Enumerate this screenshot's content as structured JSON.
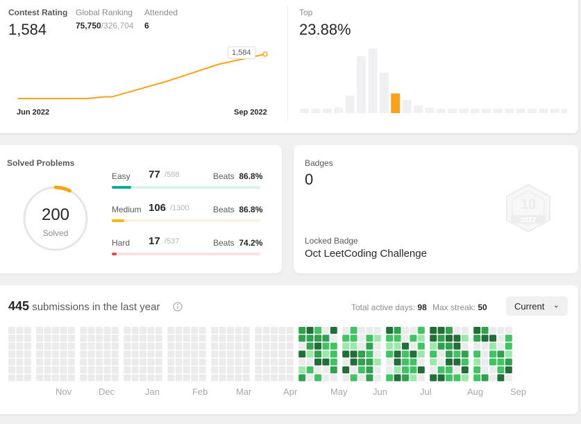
{
  "contest": {
    "rating_label": "Contest Rating",
    "rating_value": "1,584",
    "ranking_label": "Global Ranking",
    "ranking_value": "75,750",
    "ranking_total": "/326,704",
    "attended_label": "Attended",
    "attended_value": "6",
    "tooltip_value": "1,584",
    "x_start": "Jun 2022",
    "x_end": "Sep 2022",
    "rating_series": [
      1480,
      1480,
      1480,
      1484,
      1484,
      1520,
      1560,
      1584
    ],
    "top_label": "Top",
    "top_value": "23.88%",
    "histogram": [
      4,
      4,
      4,
      5,
      16,
      52,
      59,
      37,
      18,
      12,
      7,
      5,
      4,
      4,
      4,
      4,
      4,
      4,
      4,
      4,
      4,
      4,
      4,
      4
    ],
    "histogram_highlight_index": 8,
    "line_color": "#ffa116",
    "bar_color": "#f0f0f2"
  },
  "solved": {
    "title": "Solved Problems",
    "total": "200",
    "total_label": "Solved",
    "beats_label": "Beats",
    "rows": [
      {
        "label": "Easy",
        "count": "77",
        "total": "/598",
        "beats": "86.8%",
        "fraction": 0.129,
        "color": "#00af9b",
        "track": "#dcf1ec"
      },
      {
        "label": "Medium",
        "count": "106",
        "total": "/1300",
        "beats": "86.8%",
        "fraction": 0.082,
        "color": "#ffb800",
        "track": "#fcf1dc"
      },
      {
        "label": "Hard",
        "count": "17",
        "total": "/537",
        "beats": "74.2%",
        "fraction": 0.032,
        "color": "#ef4743",
        "track": "#fbe2e2"
      }
    ]
  },
  "badges": {
    "title": "Badges",
    "count": "0",
    "locked_label": "Locked Badge",
    "locked_name": "Oct LeetCoding Challenge",
    "badge_year": "2022"
  },
  "submissions": {
    "count": "445",
    "suffix": "submissions in the last year",
    "active_label": "Total active days:",
    "active_value": "98",
    "streak_label": "Max streak:",
    "streak_value": "50",
    "range_select": "Current",
    "months": [
      "Nov",
      "Dec",
      "Jan",
      "Feb",
      "Mar",
      "Apr",
      "May",
      "Jun",
      "Jul",
      "Aug",
      "Sep"
    ],
    "levels": {
      "empty": "#ebebeb",
      "l1": "#9be9a8",
      "l2": "#40c463",
      "l3": "#30a14e",
      "l4": "#216e39"
    }
  }
}
